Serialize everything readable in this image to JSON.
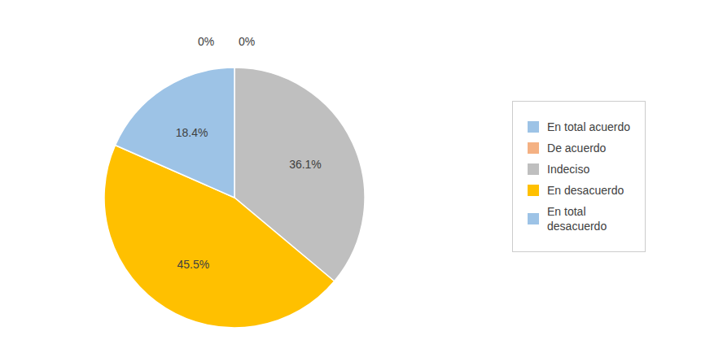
{
  "chart_data": {
    "type": "pie",
    "categories": [
      "En total acuerdo",
      "De acuerdo",
      "Indeciso",
      "En desacuerdo",
      "En total\ndesacuerdo"
    ],
    "values": [
      0.0,
      0.0,
      36.1,
      45.5,
      18.4
    ],
    "value_labels": [
      "0%",
      "0%",
      "36.1%",
      "45.5%",
      "18.4%"
    ],
    "colors": [
      "#9DC3E6",
      "#F4B183",
      "#BFBFBF",
      "#FFC000",
      "#9DC3E6"
    ],
    "data_labels": true,
    "legend": "right"
  }
}
